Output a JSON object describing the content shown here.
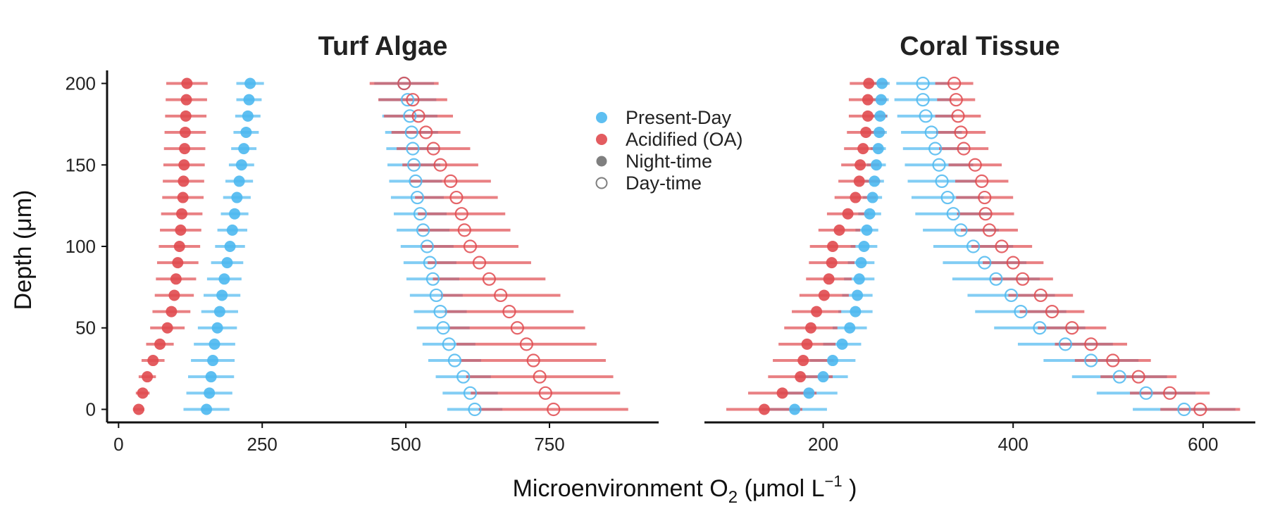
{
  "chart_data": {
    "type": "scatter",
    "xlabel_main": "Microenvironment O",
    "xlabel_sub": "2",
    "xlabel_tail": " (μmol L",
    "xlabel_sup": "−1",
    "xlabel_end": " )",
    "ylabel": "Depth (μm)",
    "colors": {
      "present": "#4db8f0",
      "oa": "#e04a4f",
      "gray": "#7f7f7f"
    },
    "legend": {
      "position": "top-center",
      "entries": [
        {
          "label": "Present-Day",
          "kind": "color",
          "color": "present"
        },
        {
          "label": "Acidified (OA)",
          "kind": "color",
          "color": "oa"
        },
        {
          "label": "Night-time",
          "kind": "filled"
        },
        {
          "label": "Day-time",
          "kind": "open"
        }
      ]
    },
    "y_ticks": [
      "0",
      "50",
      "100",
      "150",
      "200"
    ],
    "ylim": [
      -8,
      208
    ],
    "depths": [
      0,
      10,
      20,
      30,
      40,
      50,
      60,
      70,
      80,
      90,
      100,
      110,
      120,
      130,
      140,
      150,
      160,
      170,
      180,
      190,
      200
    ],
    "panels": [
      {
        "title": "Turf Algae",
        "xlim": [
          -20,
          940
        ],
        "x_ticks": [
          0,
          250,
          500,
          750
        ],
        "x_tick_labels": [
          "0",
          "250",
          "500",
          "750"
        ],
        "series": [
          {
            "name": "Present-Day Night-time",
            "treatment": "present",
            "period": "night",
            "mean": [
              153,
              158,
              161,
              164,
              167,
              172,
              176,
              180,
              184,
              189,
              194,
              198,
              202,
              206,
              210,
              214,
              218,
              222,
              225,
              227,
              229
            ],
            "err": [
              40,
              40,
              40,
              38,
              36,
              34,
              32,
              32,
              30,
              28,
              26,
              26,
              24,
              24,
              24,
              22,
              22,
              22,
              22,
              22,
              24
            ]
          },
          {
            "name": "Acidified (OA) Night-time",
            "treatment": "oa",
            "period": "night",
            "mean": [
              35,
              42,
              50,
              60,
              72,
              85,
              92,
              97,
              100,
              103,
              106,
              108,
              110,
              112,
              113,
              114,
              115,
              116,
              117,
              118,
              119
            ],
            "err": [
              10,
              12,
              15,
              20,
              24,
              30,
              33,
              34,
              35,
              36,
              36,
              36,
              36,
              36,
              36,
              36,
              36,
              36,
              36,
              36,
              36
            ]
          },
          {
            "name": "Present-Day Day-time",
            "treatment": "present",
            "period": "day",
            "mean": [
              620,
              612,
              600,
              585,
              575,
              565,
              560,
              553,
              547,
              542,
              537,
              530,
              525,
              520,
              517,
              514,
              512,
              510,
              507,
              503,
              497
            ],
            "err": [
              48,
              48,
              48,
              46,
              46,
              46,
              46,
              46,
              46,
              46,
              46,
              46,
              46,
              46,
              46,
              46,
              46,
              46,
              48,
              50,
              52
            ]
          },
          {
            "name": "Acidified (OA) Day-time",
            "treatment": "oa",
            "period": "day",
            "mean": [
              757,
              743,
              733,
              722,
              710,
              694,
              680,
              665,
              645,
              628,
              612,
              602,
              597,
              588,
              578,
              560,
              548,
              535,
              522,
              512,
              497
            ],
            "err": [
              130,
              130,
              128,
              126,
              122,
              118,
              112,
              104,
              98,
              90,
              84,
              80,
              76,
              72,
              70,
              66,
              64,
              60,
              60,
              60,
              60
            ]
          }
        ]
      },
      {
        "title": "Coral Tissue",
        "xlim": [
          75,
          655
        ],
        "x_ticks": [
          200,
          400,
          600
        ],
        "x_tick_labels": [
          "200",
          "400",
          "600"
        ],
        "series": [
          {
            "name": "Present-Day Night-time",
            "treatment": "present",
            "period": "night",
            "mean": [
              170,
              185,
              200,
              210,
              220,
              228,
              234,
              236,
              238,
              240,
              243,
              246,
              249,
              252,
              254,
              256,
              258,
              259,
              260,
              261,
              262
            ],
            "err": [
              34,
              30,
              26,
              24,
              20,
              18,
              18,
              16,
              16,
              14,
              14,
              12,
              12,
              10,
              10,
              10,
              8,
              8,
              8,
              8,
              8
            ]
          },
          {
            "name": "Acidified (OA) Night-time",
            "treatment": "oa",
            "period": "night",
            "mean": [
              138,
              157,
              176,
              179,
              183,
              187,
              193,
              201,
              206,
              209,
              210,
              217,
              226,
              234,
              238,
              239,
              242,
              245,
              247,
              247,
              248
            ],
            "err": [
              40,
              36,
              34,
              32,
              30,
              28,
              26,
              26,
              24,
              24,
              24,
              22,
              22,
              22,
              22,
              20,
              20,
              20,
              20,
              20,
              20
            ]
          },
          {
            "name": "Present-Day Day-time",
            "treatment": "present",
            "period": "day",
            "mean": [
              580,
              540,
              512,
              482,
              455,
              428,
              408,
              398,
              382,
              370,
              358,
              345,
              337,
              331,
              325,
              322,
              318,
              314,
              308,
              305,
              305
            ],
            "err": [
              54,
              52,
              50,
              50,
              50,
              48,
              48,
              46,
              46,
              44,
              42,
              40,
              40,
              38,
              36,
              36,
              34,
              32,
              30,
              30,
              28
            ]
          },
          {
            "name": "Acidified (OA) Day-time",
            "treatment": "oa",
            "period": "day",
            "mean": [
              597,
              565,
              532,
              505,
              482,
              462,
              441,
              429,
              410,
              400,
              388,
              375,
              371,
              370,
              367,
              360,
              348,
              345,
              342,
              340,
              338
            ],
            "err": [
              42,
              42,
              40,
              40,
              38,
              36,
              34,
              34,
              32,
              32,
              32,
              30,
              30,
              30,
              28,
              28,
              26,
              26,
              24,
              20,
              20
            ]
          }
        ]
      }
    ]
  }
}
